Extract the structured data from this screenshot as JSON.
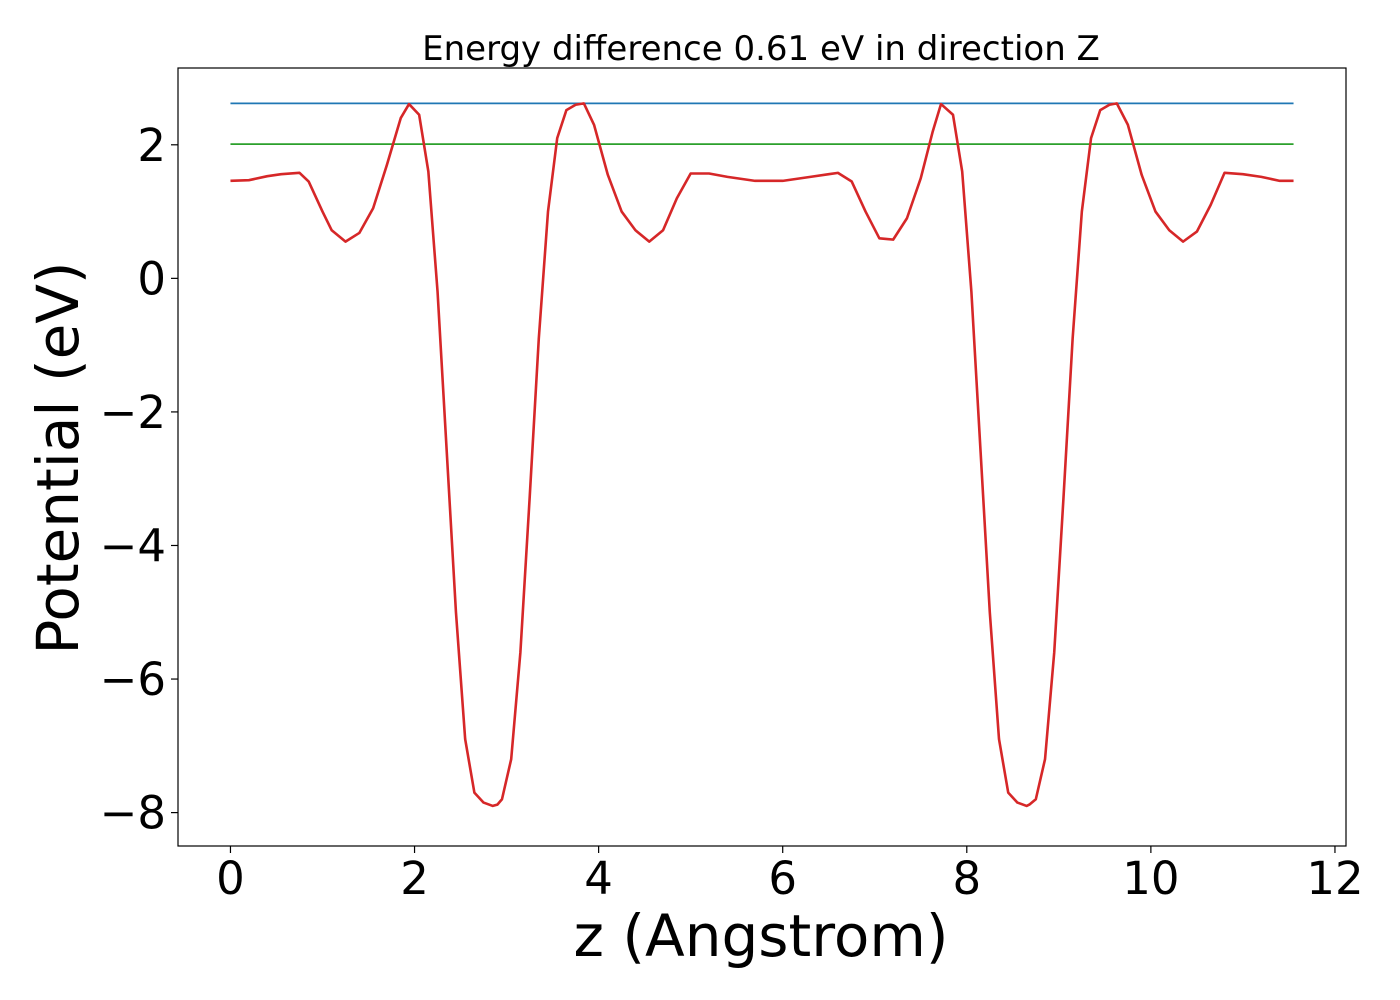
{
  "chart_data": {
    "type": "line",
    "title": "Energy difference 0.61 eV in direction Z",
    "xlabel": "z (Angstrom)",
    "ylabel": "Potential (eV)",
    "xlim": [
      -0.57,
      12.12
    ],
    "ylim": [
      -8.5,
      3.15
    ],
    "xticks": [
      0,
      2,
      4,
      6,
      8,
      10,
      12
    ],
    "yticks": [
      -8,
      -6,
      -4,
      -2,
      0,
      2
    ],
    "xtick_labels": [
      "0",
      "2",
      "4",
      "6",
      "8",
      "10",
      "12"
    ],
    "ytick_labels": [
      "−8",
      "−6",
      "−4",
      "−2",
      "0",
      "2"
    ],
    "grid": false,
    "legend": "none",
    "series": [
      {
        "color": "#1f77b4",
        "x": [
          0.0,
          11.55
        ],
        "y": [
          2.62,
          2.62
        ]
      },
      {
        "color": "#2ca02c",
        "x": [
          0.0,
          11.55
        ],
        "y": [
          2.01,
          2.01
        ]
      },
      {
        "color": "#d62728",
        "x": [
          0.0,
          0.2,
          0.4,
          0.55,
          0.75,
          0.85,
          1.0,
          1.1,
          1.25,
          1.4,
          1.55,
          1.7,
          1.85,
          1.94,
          2.05,
          2.15,
          2.25,
          2.35,
          2.45,
          2.55,
          2.65,
          2.75,
          2.85,
          2.9,
          2.95,
          3.05,
          3.15,
          3.25,
          3.35,
          3.45,
          3.55,
          3.65,
          3.75,
          3.84,
          3.95,
          4.1,
          4.25,
          4.4,
          4.55,
          4.7,
          4.85,
          5.0,
          5.2,
          5.4,
          5.7,
          6.0,
          6.3,
          6.5,
          6.6,
          6.75,
          6.9,
          7.05,
          7.2,
          7.35,
          7.5,
          7.63,
          7.72,
          7.85,
          7.95,
          8.05,
          8.15,
          8.25,
          8.35,
          8.45,
          8.55,
          8.65,
          8.68,
          8.75,
          8.85,
          8.95,
          9.05,
          9.15,
          9.25,
          9.35,
          9.45,
          9.55,
          9.63,
          9.75,
          9.9,
          10.05,
          10.2,
          10.35,
          10.5,
          10.65,
          10.8,
          11.0,
          11.2,
          11.4,
          11.55
        ],
        "y": [
          1.46,
          1.47,
          1.53,
          1.56,
          1.58,
          1.45,
          1.0,
          0.72,
          0.55,
          0.68,
          1.05,
          1.7,
          2.4,
          2.61,
          2.45,
          1.6,
          -0.2,
          -2.6,
          -5.0,
          -6.9,
          -7.7,
          -7.85,
          -7.9,
          -7.88,
          -7.8,
          -7.2,
          -5.6,
          -3.3,
          -0.9,
          1.0,
          2.1,
          2.52,
          2.6,
          2.62,
          2.3,
          1.55,
          1.0,
          0.72,
          0.55,
          0.72,
          1.2,
          1.57,
          1.57,
          1.52,
          1.46,
          1.46,
          1.52,
          1.56,
          1.58,
          1.45,
          1.0,
          0.6,
          0.58,
          0.9,
          1.5,
          2.2,
          2.61,
          2.45,
          1.6,
          -0.2,
          -2.6,
          -5.0,
          -6.9,
          -7.7,
          -7.85,
          -7.9,
          -7.88,
          -7.8,
          -7.2,
          -5.6,
          -3.3,
          -0.9,
          1.0,
          2.1,
          2.52,
          2.6,
          2.62,
          2.3,
          1.55,
          1.0,
          0.72,
          0.55,
          0.7,
          1.1,
          1.58,
          1.56,
          1.52,
          1.46,
          1.46
        ]
      }
    ]
  }
}
